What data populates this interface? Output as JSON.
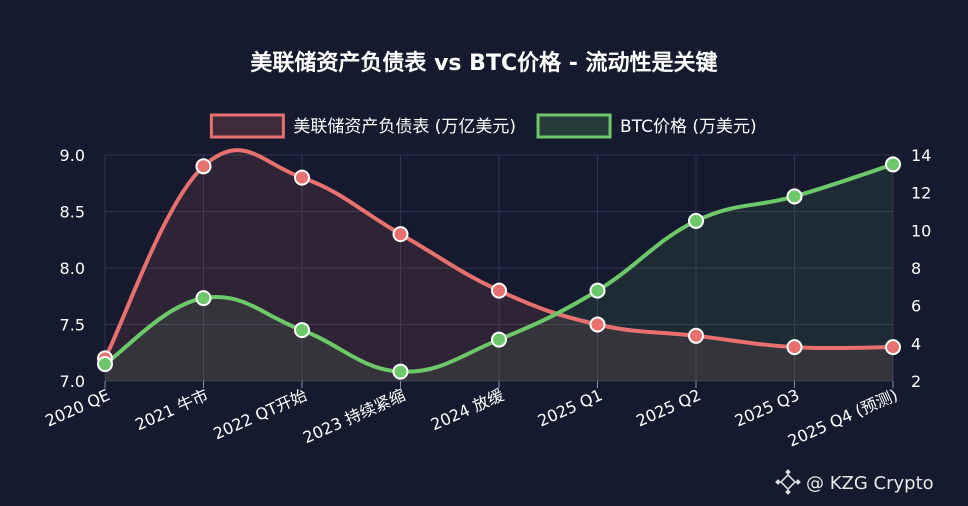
{
  "chart_data": {
    "type": "line",
    "title": "美联储资产负债表 vs BTC价格 - 流动性是关键",
    "categories": [
      "2020 QE",
      "2021 牛市",
      "2022 QT开始",
      "2023 持续紧缩",
      "2024 放缓",
      "2025 Q1",
      "2025 Q2",
      "2025 Q3",
      "2025 Q4 (预测)"
    ],
    "series": [
      {
        "name": "美联储资产负债表 (万亿美元)",
        "axis": "left",
        "color": "#e8706f",
        "fill": "#3a1f33",
        "values": [
          7.2,
          8.9,
          8.8,
          8.3,
          7.8,
          7.5,
          7.4,
          7.3,
          7.3
        ]
      },
      {
        "name": "BTC价格 (万美元)",
        "axis": "right",
        "color": "#6cc868",
        "fill": "#17292b",
        "values": [
          2.9,
          6.4,
          4.7,
          2.5,
          4.2,
          6.8,
          10.5,
          11.8,
          13.5
        ]
      }
    ],
    "y_left": {
      "min": 7.0,
      "max": 9.0,
      "ticks": [
        "7.0",
        "7.5",
        "8.0",
        "8.5",
        "9.0"
      ]
    },
    "y_right": {
      "min": 2,
      "max": 14,
      "ticks": [
        "2",
        "4",
        "6",
        "8",
        "10",
        "12",
        "14"
      ]
    },
    "grid": true,
    "legend_position": "top-center"
  },
  "watermark": {
    "text": "@ KZG Crypto",
    "icon": "binance-diamond-icon"
  }
}
